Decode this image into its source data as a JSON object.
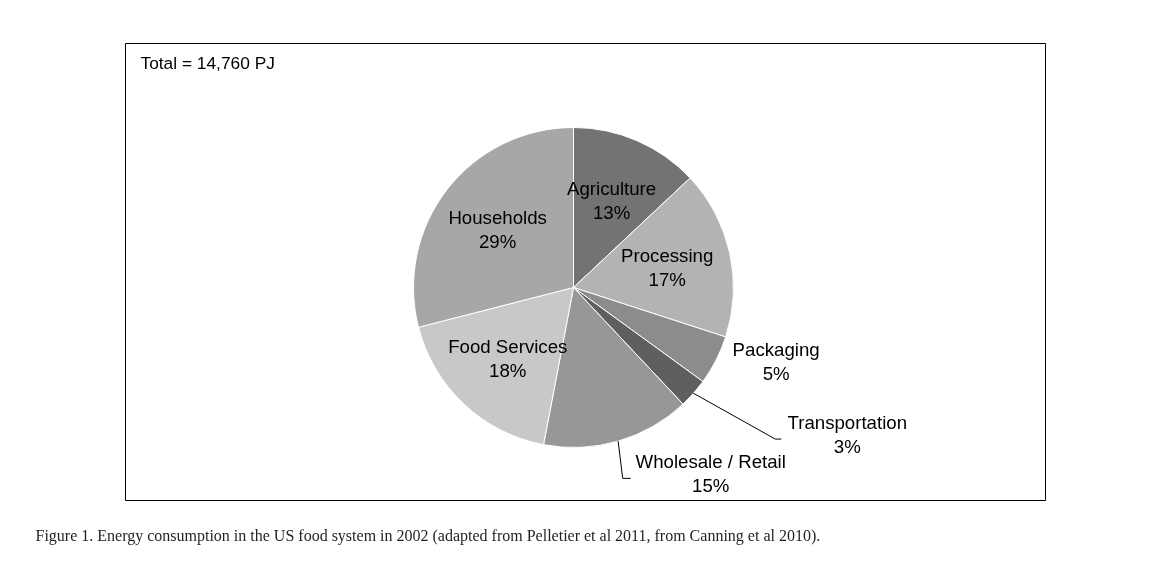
{
  "chart_data": {
    "type": "pie",
    "categories": [
      "Agriculture",
      "Processing",
      "Packaging",
      "Transportation",
      "Wholesale / Retail",
      "Food Services",
      "Households"
    ],
    "values": [
      13,
      17,
      5,
      3,
      15,
      18,
      29
    ],
    "value_labels": [
      "13%",
      "17%",
      "5%",
      "3%",
      "15%",
      "18%",
      "29%"
    ],
    "colors": [
      "#737373",
      "#b3b3b3",
      "#8c8c8c",
      "#5f5f5f",
      "#979797",
      "#c8c8c9",
      "#a7a7a9"
    ],
    "annotations": [
      "Total = 14,760 PJ",
      "Figure 1. Energy consumption in the US food system in 2002 (adapted from Pelletier et al 2011, from Canning et al 2010)."
    ]
  }
}
